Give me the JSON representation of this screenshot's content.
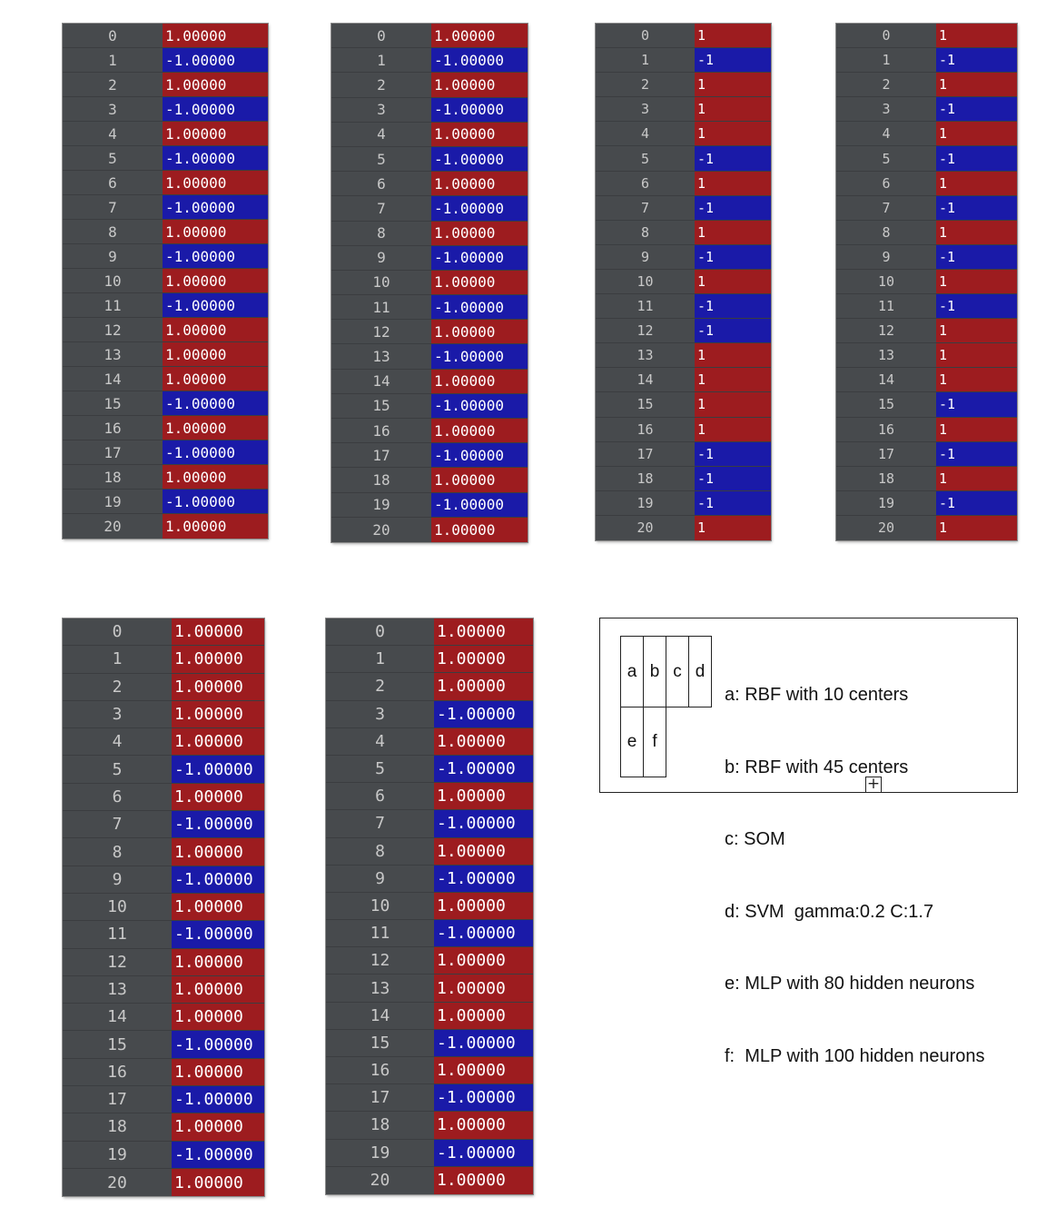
{
  "panels": [
    {
      "id": "panel-a",
      "index": [
        "0",
        "1",
        "2",
        "3",
        "4",
        "5",
        "6",
        "7",
        "8",
        "9",
        "10",
        "11",
        "12",
        "13",
        "14",
        "15",
        "16",
        "17",
        "18",
        "19",
        "20"
      ],
      "values": [
        "1.00000",
        "-1.00000",
        "1.00000",
        "-1.00000",
        "1.00000",
        "-1.00000",
        "1.00000",
        "-1.00000",
        "1.00000",
        "-1.00000",
        "1.00000",
        "-1.00000",
        "1.00000",
        "1.00000",
        "1.00000",
        "-1.00000",
        "1.00000",
        "-1.00000",
        "1.00000",
        "-1.00000",
        "1.00000"
      ]
    },
    {
      "id": "panel-b",
      "index": [
        "0",
        "1",
        "2",
        "3",
        "4",
        "5",
        "6",
        "7",
        "8",
        "9",
        "10",
        "11",
        "12",
        "13",
        "14",
        "15",
        "16",
        "17",
        "18",
        "19",
        "20"
      ],
      "values": [
        "1.00000",
        "-1.00000",
        "1.00000",
        "-1.00000",
        "1.00000",
        "-1.00000",
        "1.00000",
        "-1.00000",
        "1.00000",
        "-1.00000",
        "1.00000",
        "-1.00000",
        "1.00000",
        "-1.00000",
        "1.00000",
        "-1.00000",
        "1.00000",
        "-1.00000",
        "1.00000",
        "-1.00000",
        "1.00000"
      ]
    },
    {
      "id": "panel-c",
      "index": [
        "0",
        "1",
        "2",
        "3",
        "4",
        "5",
        "6",
        "7",
        "8",
        "9",
        "10",
        "11",
        "12",
        "13",
        "14",
        "15",
        "16",
        "17",
        "18",
        "19",
        "20"
      ],
      "values": [
        "1",
        "-1",
        "1",
        "1",
        "1",
        "-1",
        "1",
        "-1",
        "1",
        "-1",
        "1",
        "-1",
        "-1",
        "1",
        "1",
        "1",
        "1",
        "-1",
        "-1",
        "-1",
        "1"
      ]
    },
    {
      "id": "panel-d",
      "index": [
        "0",
        "1",
        "2",
        "3",
        "4",
        "5",
        "6",
        "7",
        "8",
        "9",
        "10",
        "11",
        "12",
        "13",
        "14",
        "15",
        "16",
        "17",
        "18",
        "19",
        "20"
      ],
      "values": [
        "1",
        "-1",
        "1",
        "-1",
        "1",
        "-1",
        "1",
        "-1",
        "1",
        "-1",
        "1",
        "-1",
        "1",
        "1",
        "1",
        "-1",
        "1",
        "-1",
        "1",
        "-1",
        "1"
      ]
    },
    {
      "id": "panel-e",
      "index": [
        "0",
        "1",
        "2",
        "3",
        "4",
        "5",
        "6",
        "7",
        "8",
        "9",
        "10",
        "11",
        "12",
        "13",
        "14",
        "15",
        "16",
        "17",
        "18",
        "19",
        "20"
      ],
      "values": [
        "1.00000",
        "1.00000",
        "1.00000",
        "1.00000",
        "1.00000",
        "-1.00000",
        "1.00000",
        "-1.00000",
        "1.00000",
        "-1.00000",
        "1.00000",
        "-1.00000",
        "1.00000",
        "1.00000",
        "1.00000",
        "-1.00000",
        "1.00000",
        "-1.00000",
        "1.00000",
        "-1.00000",
        "1.00000"
      ]
    },
    {
      "id": "panel-f",
      "index": [
        "0",
        "1",
        "2",
        "3",
        "4",
        "5",
        "6",
        "7",
        "8",
        "9",
        "10",
        "11",
        "12",
        "13",
        "14",
        "15",
        "16",
        "17",
        "18",
        "19",
        "20"
      ],
      "values": [
        "1.00000",
        "1.00000",
        "1.00000",
        "-1.00000",
        "1.00000",
        "-1.00000",
        "1.00000",
        "-1.00000",
        "1.00000",
        "-1.00000",
        "1.00000",
        "-1.00000",
        "1.00000",
        "1.00000",
        "1.00000",
        "-1.00000",
        "1.00000",
        "-1.00000",
        "1.00000",
        "-1.00000",
        "1.00000"
      ]
    }
  ],
  "legend": {
    "cells": [
      "a",
      "b",
      "c",
      "d",
      "e",
      "f"
    ],
    "lines": [
      "a: RBF with 10 centers",
      "b: RBF with 45 centers",
      "c: SOM",
      "d: SVM  gamma:0.2 C:1.7",
      "e: MLP with 80 hidden neurons",
      "f:  MLP with 100 hidden neurons"
    ]
  },
  "colors": {
    "positive": "#9d1c1f",
    "negative": "#1a1aa8",
    "panel_bg": "#474a4d"
  }
}
